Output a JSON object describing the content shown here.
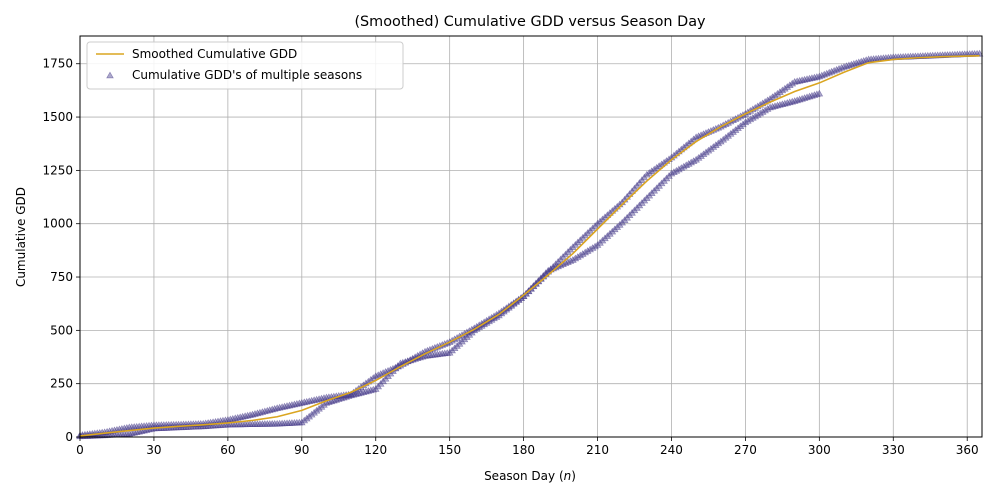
{
  "chart_data": {
    "type": "line",
    "title": "(Smoothed) Cumulative GDD versus Season Day",
    "xlabel_prefix": "Season Day (",
    "xlabel_var": "n",
    "xlabel_suffix": ")",
    "ylabel": "Cumulative GDD",
    "xlim": [
      0,
      366
    ],
    "ylim": [
      0,
      1880
    ],
    "xticks": [
      0,
      30,
      60,
      90,
      120,
      150,
      180,
      210,
      240,
      270,
      300,
      330,
      360
    ],
    "yticks": [
      0,
      250,
      500,
      750,
      1000,
      1250,
      1500,
      1750
    ],
    "grid": true,
    "legend_position": "upper-left",
    "colors": {
      "line": "#DAA520",
      "markers": "#483D8B"
    },
    "legend": [
      {
        "label": "Smoothed Cumulative GDD",
        "kind": "line"
      },
      {
        "label": "Cumulative GDD's of multiple seasons",
        "kind": "marker"
      }
    ],
    "series": [
      {
        "name": "Smoothed Cumulative GDD",
        "kind": "line",
        "x": [
          0,
          10,
          20,
          30,
          40,
          50,
          60,
          70,
          80,
          90,
          100,
          110,
          120,
          130,
          140,
          150,
          160,
          170,
          180,
          190,
          200,
          210,
          220,
          230,
          240,
          250,
          260,
          270,
          280,
          290,
          300,
          310,
          320,
          330,
          340,
          350,
          360,
          365
        ],
        "y": [
          5,
          18,
          30,
          42,
          50,
          57,
          66,
          78,
          95,
          125,
          170,
          210,
          265,
          330,
          390,
          445,
          505,
          575,
          665,
          760,
          860,
          975,
          1090,
          1200,
          1300,
          1385,
          1455,
          1515,
          1570,
          1620,
          1660,
          1710,
          1755,
          1770,
          1778,
          1783,
          1786,
          1787
        ]
      },
      {
        "name": "Cumulative GDD's of multiple seasons (upper)",
        "kind": "scatter",
        "x": [
          0,
          10,
          20,
          30,
          40,
          50,
          60,
          70,
          80,
          90,
          100,
          110,
          120,
          130,
          140,
          150,
          160,
          170,
          180,
          190,
          200,
          210,
          220,
          230,
          240,
          250,
          260,
          270,
          280,
          290,
          300,
          310,
          320,
          330,
          340,
          350,
          360,
          365
        ],
        "y": [
          8,
          22,
          45,
          55,
          58,
          62,
          80,
          105,
          135,
          160,
          185,
          200,
          285,
          335,
          400,
          445,
          510,
          580,
          660,
          775,
          890,
          1000,
          1100,
          1230,
          1310,
          1405,
          1455,
          1515,
          1585,
          1665,
          1690,
          1735,
          1770,
          1780,
          1785,
          1790,
          1795,
          1797
        ]
      },
      {
        "name": "Cumulative GDD's of multiple seasons (lower)",
        "kind": "scatter",
        "x": [
          0,
          10,
          20,
          30,
          40,
          50,
          60,
          70,
          80,
          90,
          100,
          110,
          120,
          130,
          140,
          150,
          160,
          170,
          180,
          190,
          200,
          210,
          220,
          230,
          240,
          250,
          260,
          270,
          280,
          290,
          300
        ],
        "y": [
          3,
          8,
          15,
          40,
          45,
          50,
          58,
          60,
          62,
          68,
          160,
          195,
          225,
          345,
          380,
          395,
          500,
          570,
          660,
          780,
          830,
          900,
          1005,
          1120,
          1235,
          1300,
          1385,
          1475,
          1545,
          1575,
          1610
        ]
      }
    ]
  }
}
